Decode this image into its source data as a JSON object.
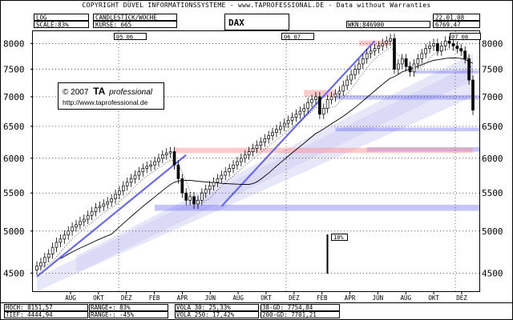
{
  "header": {
    "copyright": "COPYRIGHT DÜVEL INFORMATIONSSYSTEME - www.TAPROFESSIONAL.DE - Data without Warranties",
    "log": "LOG",
    "scale": "SCALE:83%",
    "chart_type": "CANDLESTICK/WOCHE",
    "kurse": "KURSE: 665",
    "symbol": "DAX",
    "wkn": "WKN:846900",
    "date": "22.01.08",
    "last": "6769,47"
  },
  "watermark": {
    "line1_prefix": "© 2007",
    "line1_brand": "TA",
    "line1_suffix": "professional",
    "url": "http://www.taprofessional.de"
  },
  "markers": {
    "year_05_06": "05 06",
    "year_06_07": "06 07",
    "year_07_08": "07 08",
    "pct_label": "10%"
  },
  "footer": {
    "hoch": "HOCH: 8151,57",
    "tief": "TIEF: 4444,94",
    "range_plus": "RANGE+:  83%",
    "range_minus": "RANGE-: -45%",
    "vola30": "VOLA  30: 25,33%",
    "vola250": "VOLA 250: 17,42%",
    "gd38": "38-GD: 7754,84",
    "gd200": "200-GD: 7701,21"
  },
  "colors": {
    "candle": "#000000",
    "trend": "#6a6ae8",
    "band": "#c9c9f5",
    "support_zone": "#5a5af0",
    "resistance_zone": "#ff8a8a",
    "ma_line": "#000000"
  },
  "chart_data": {
    "type": "candlestick",
    "title": "DAX",
    "y_scale": "log",
    "y_ticks": [
      4500,
      5000,
      5500,
      6000,
      6500,
      7000,
      7500,
      8000
    ],
    "ylim": [
      4300,
      8250
    ],
    "x_month_labels": [
      "AUG",
      "OKT",
      "DEZ",
      "FEB",
      "APR",
      "JUN",
      "AUG",
      "OKT",
      "DEZ",
      "FEB",
      "APR",
      "JUN",
      "AUG",
      "OKT",
      "DEZ"
    ],
    "weekly_close_approx": [
      4580,
      4620,
      4680,
      4720,
      4800,
      4860,
      4900,
      4950,
      5000,
      5050,
      5080,
      5120,
      5150,
      5200,
      5250,
      5300,
      5320,
      5350,
      5380,
      5420,
      5480,
      5530,
      5600,
      5650,
      5700,
      5750,
      5800,
      5850,
      5880,
      5900,
      5950,
      6000,
      6050,
      6080,
      6100,
      5900,
      5700,
      5500,
      5400,
      5450,
      5350,
      5400,
      5500,
      5550,
      5600,
      5650,
      5700,
      5750,
      5800,
      5850,
      5900,
      5950,
      6000,
      6050,
      6100,
      6150,
      6200,
      6250,
      6300,
      6350,
      6400,
      6450,
      6500,
      6550,
      6600,
      6650,
      6700,
      6750,
      6800,
      6900,
      6950,
      7000,
      6700,
      6800,
      6950,
      7000,
      7050,
      7100,
      7200,
      7300,
      7400,
      7500,
      7600,
      7700,
      7800,
      7850,
      7900,
      7950,
      8000,
      8050,
      8100,
      7500,
      7600,
      7700,
      7550,
      7450,
      7600,
      7700,
      7800,
      7900,
      7950,
      8000,
      7850,
      7950,
      8050,
      8000,
      7950,
      7900,
      7850,
      7700,
      7300,
      6769
    ],
    "high": 8151.57,
    "low": 4444.94,
    "ma38": 7754.84,
    "ma200": 7701.21,
    "resistance_zones": [
      [
        6050,
        6150
      ],
      [
        6950,
        7100
      ],
      [
        7950,
        8050
      ]
    ],
    "support_zones": [
      [
        5250,
        5350
      ],
      [
        6100,
        6200
      ],
      [
        6400,
        6500
      ],
      [
        6950,
        7050
      ],
      [
        7400,
        7500
      ]
    ],
    "annotation": "10%"
  }
}
